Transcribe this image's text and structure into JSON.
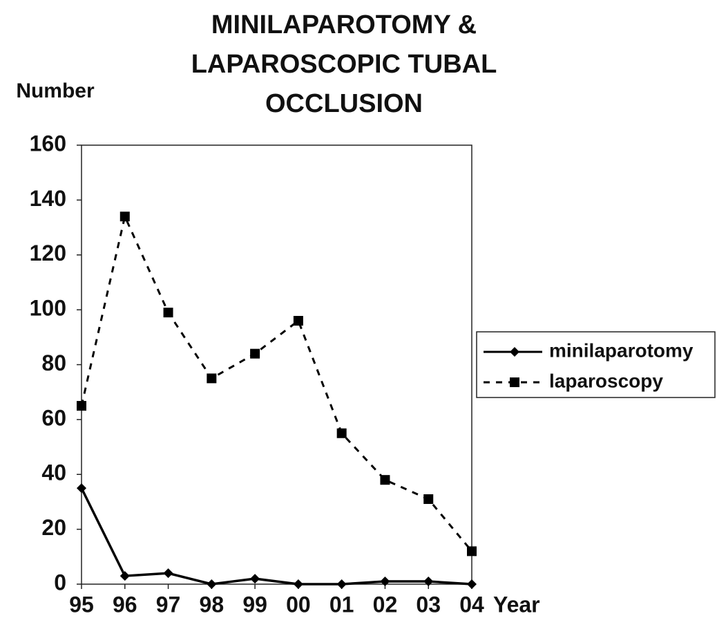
{
  "chart_data": {
    "type": "line",
    "title": [
      "MINILAPAROTOMY &",
      "LAPAROSCOPIC TUBAL",
      "OCCLUSION"
    ],
    "y_label": "Number",
    "x_label": "Year",
    "categories": [
      "95",
      "96",
      "97",
      "98",
      "99",
      "00",
      "01",
      "02",
      "03",
      "04"
    ],
    "series": [
      {
        "name": "minilaparotomy",
        "color": "#000000",
        "marker": "diamond",
        "dash": false,
        "values": [
          35,
          3,
          4,
          0,
          2,
          0,
          0,
          1,
          1,
          0
        ]
      },
      {
        "name": "laparoscopy",
        "color": "#000000",
        "marker": "square",
        "dash": true,
        "values": [
          65,
          134,
          99,
          75,
          84,
          96,
          55,
          38,
          31,
          12
        ]
      }
    ],
    "ylim": [
      0,
      160
    ],
    "yticks": [
      0,
      20,
      40,
      60,
      80,
      100,
      120,
      140,
      160
    ],
    "grid": false,
    "legend": "right"
  }
}
